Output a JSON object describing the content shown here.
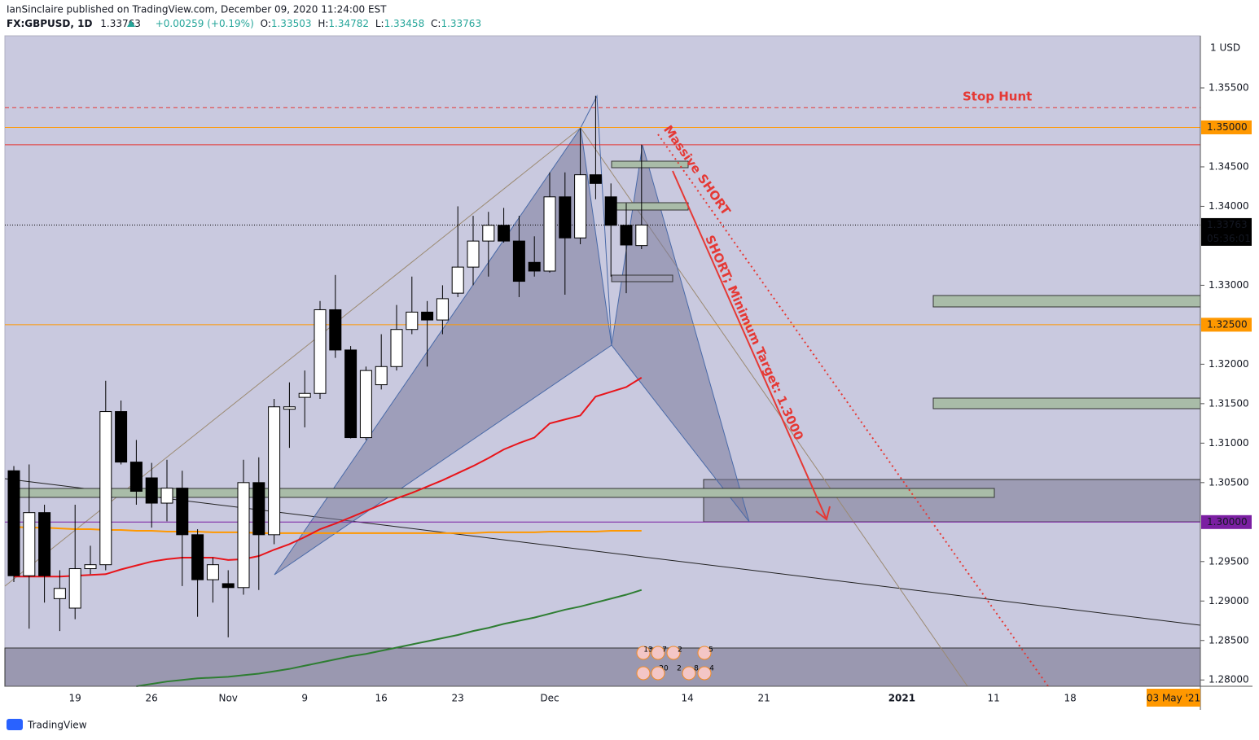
{
  "header": {
    "author_line": "IanSinclaire published on TradingView.com, December 09, 2020 11:24:00 EST",
    "symbol": "FX:GBPUSD, 1D",
    "price": "1.33763",
    "change": "+0.00259 (+0.19%)",
    "ohlc": [
      {
        "key": "O:",
        "value": "1.33503"
      },
      {
        "key": "H:",
        "value": "1.34782"
      },
      {
        "key": "L:",
        "value": "1.33458"
      },
      {
        "key": "C:",
        "value": "1.33763"
      }
    ]
  },
  "footer": {
    "brand": "TradingView"
  },
  "chart_data": {
    "type": "candlestick",
    "currency": "1 USD",
    "categories": [
      null,
      null,
      null,
      null,
      "19",
      null,
      null,
      null,
      null,
      "26",
      null,
      null,
      null,
      null,
      "Nov",
      null,
      null,
      null,
      null,
      "9",
      null,
      null,
      null,
      null,
      "16",
      null,
      null,
      null,
      null,
      "23",
      null,
      null,
      null,
      null,
      null,
      "Dec",
      null,
      null,
      null,
      null,
      null,
      null,
      null,
      null,
      "14",
      null,
      null,
      null,
      null,
      "21",
      null,
      null,
      null,
      null,
      null,
      null,
      null,
      null,
      "2021",
      null,
      null,
      null,
      null,
      null,
      "11",
      null,
      null,
      null,
      null,
      "18",
      null,
      null,
      null,
      null,
      null,
      null,
      null,
      null
    ],
    "open": [
      1.3065,
      1.2932,
      1.3012,
      1.2903,
      1.2891,
      1.2941,
      1.2946,
      1.314,
      1.3076,
      1.3056,
      1.3024,
      1.3043,
      1.2984,
      1.2927,
      1.2922,
      1.2917,
      1.305,
      1.2984,
      1.3143,
      1.3158,
      1.3163,
      1.3269,
      1.3218,
      1.3107,
      1.3174,
      1.3197,
      1.3244,
      1.3266,
      1.3256,
      1.329,
      1.3323,
      1.3356,
      1.3376,
      1.3356,
      1.3329,
      1.3318,
      1.3412,
      1.336,
      1.344,
      1.3412,
      1.3376,
      1.33503,
      null,
      null,
      null,
      null,
      null,
      null,
      null,
      null,
      null,
      null,
      null,
      null,
      null,
      null,
      null,
      null,
      null,
      null,
      null,
      null,
      null,
      null,
      null,
      null,
      null,
      null,
      null,
      null,
      null,
      null,
      null,
      null,
      null,
      null,
      null,
      null
    ],
    "high": [
      1.3071,
      1.3073,
      1.3022,
      1.2939,
      1.3022,
      1.297,
      1.3179,
      1.3154,
      1.3104,
      1.3075,
      1.3079,
      1.3065,
      1.2991,
      1.2955,
      1.2939,
      1.3079,
      1.3082,
      1.3156,
      1.3177,
      1.3192,
      1.328,
      1.3313,
      1.3223,
      1.3197,
      1.3238,
      1.3275,
      1.3311,
      1.328,
      1.33,
      1.34,
      1.3388,
      1.3393,
      1.3398,
      1.3388,
      1.3362,
      1.3443,
      1.3443,
      1.3499,
      1.354,
      1.3429,
      1.3404,
      1.34782,
      null,
      null,
      null,
      null,
      null,
      null,
      null,
      null,
      null,
      null,
      null,
      null,
      null,
      null,
      null,
      null,
      null,
      null,
      null,
      null,
      null,
      null,
      null,
      null,
      null,
      null,
      null,
      null,
      null,
      null,
      null,
      null,
      null,
      null,
      null,
      null
    ],
    "low": [
      1.2924,
      1.2865,
      1.2898,
      1.2862,
      1.2877,
      1.2934,
      1.2939,
      1.3073,
      1.3022,
      1.2993,
      1.3001,
      1.2919,
      1.288,
      1.2898,
      1.2854,
      1.2908,
      1.2914,
      1.2972,
      1.3094,
      1.312,
      1.3156,
      1.3208,
      1.3106,
      1.3104,
      1.3168,
      1.3192,
      1.3238,
      1.3197,
      1.3238,
      1.3285,
      1.33,
      1.3311,
      1.3354,
      1.3285,
      1.3311,
      1.3316,
      1.3288,
      1.3352,
      1.3409,
      1.3311,
      1.329,
      1.33458,
      null,
      null,
      null,
      null,
      null,
      null,
      null,
      null,
      null,
      null,
      null,
      null,
      null,
      null,
      null,
      null,
      null,
      null,
      null,
      null,
      null,
      null,
      null,
      null,
      null,
      null,
      null,
      null,
      null,
      null,
      null,
      null,
      null,
      null,
      null,
      null
    ],
    "close": [
      1.2932,
      1.3012,
      1.2932,
      1.2916,
      1.2941,
      1.2946,
      1.314,
      1.3076,
      1.3039,
      1.3024,
      1.3043,
      1.2984,
      1.2927,
      1.2946,
      1.2917,
      1.305,
      1.2984,
      1.3146,
      1.3146,
      1.3163,
      1.3269,
      1.3218,
      1.3107,
      1.3192,
      1.3197,
      1.3244,
      1.3266,
      1.3256,
      1.3283,
      1.3323,
      1.3356,
      1.3376,
      1.3356,
      1.3305,
      1.3318,
      1.3412,
      1.336,
      1.344,
      1.3429,
      1.3376,
      1.3351,
      1.33763,
      null,
      null,
      null,
      null,
      null,
      null,
      null,
      null,
      null,
      null,
      null,
      null,
      null,
      null,
      null,
      null,
      null,
      null,
      null,
      null,
      null,
      null,
      null,
      null,
      null,
      null,
      null,
      null,
      null,
      null,
      null,
      null,
      null,
      null,
      null,
      null
    ],
    "up_color": "#ffffff",
    "down_color": "#000000",
    "series": [
      {
        "color": "#ff9800",
        "values": [
          1.2994,
          1.2993,
          1.2993,
          1.2992,
          1.2991,
          1.2991,
          1.299,
          1.299,
          1.2989,
          1.2989,
          1.2988,
          1.2988,
          1.2988,
          1.2987,
          1.2987,
          1.2987,
          1.2986,
          1.2986,
          1.2986,
          1.2986,
          1.2986,
          1.2986,
          1.2986,
          1.2986,
          1.2986,
          1.2986,
          1.2986,
          1.2986,
          1.2986,
          1.2986,
          1.2986,
          1.2987,
          1.2987,
          1.2987,
          1.2987,
          1.2988,
          1.2988,
          1.2988,
          1.2988,
          1.2989,
          1.2989,
          1.2989,
          null,
          null,
          null,
          null,
          null,
          null,
          null,
          null,
          null,
          null,
          null,
          null,
          null,
          null,
          null,
          null,
          null,
          null,
          null,
          null,
          null,
          null,
          null,
          null,
          null,
          null,
          null,
          null,
          null,
          null,
          null,
          null,
          null,
          null,
          null,
          null
        ]
      },
      {
        "color": "#e8141a",
        "values": [
          1.2931,
          1.2931,
          1.2931,
          1.2931,
          1.2932,
          1.2933,
          1.2934,
          1.294,
          1.2945,
          1.295,
          1.2953,
          1.2955,
          1.2955,
          1.2955,
          1.2952,
          1.2953,
          1.2957,
          1.2965,
          1.2972,
          1.2981,
          1.2991,
          1.2998,
          1.3006,
          1.3014,
          1.3022,
          1.303,
          1.3037,
          1.3045,
          1.3053,
          1.3062,
          1.3071,
          1.3081,
          1.3092,
          1.31,
          1.3107,
          1.3125,
          1.313,
          1.3135,
          1.3159,
          1.3165,
          1.3171,
          1.3183,
          null,
          null,
          null,
          null,
          null,
          null,
          null,
          null,
          null,
          null,
          null,
          null,
          null,
          null,
          null,
          null,
          null,
          null,
          null,
          null,
          null,
          null,
          null,
          null,
          null,
          null,
          null,
          null,
          null,
          null,
          null,
          null,
          null,
          null,
          null,
          null
        ]
      },
      {
        "color": "#2e7d32",
        "values": [
          null,
          null,
          null,
          null,
          null,
          null,
          null,
          null,
          1.2792,
          1.2795,
          1.2798,
          1.28,
          1.2802,
          1.2803,
          1.2804,
          1.2806,
          1.2808,
          1.2811,
          1.2814,
          1.2818,
          1.2822,
          1.2826,
          1.283,
          1.2833,
          1.2837,
          1.2841,
          1.2845,
          1.2849,
          1.2853,
          1.2857,
          1.2862,
          1.2866,
          1.2871,
          1.2875,
          1.2879,
          1.2884,
          1.2889,
          1.2893,
          1.2898,
          1.2903,
          1.2908,
          1.2914,
          null,
          null,
          null,
          null,
          null,
          null,
          null,
          null,
          null,
          null,
          null,
          null,
          null,
          null,
          null,
          null,
          null,
          null,
          null,
          null,
          null,
          null,
          null,
          null,
          null,
          null,
          null,
          null,
          null,
          null,
          null,
          null,
          null,
          null,
          null,
          null
        ]
      }
    ],
    "ylim": [
      1.2792,
      1.3616
    ],
    "yticks": [
      {
        "value": 1.355,
        "label": "1.35500"
      },
      {
        "value": 1.345,
        "label": "1.34500"
      },
      {
        "value": 1.34,
        "label": "1.34000"
      },
      {
        "value": 1.33,
        "label": "1.33000"
      },
      {
        "value": 1.32,
        "label": "1.32000"
      },
      {
        "value": 1.315,
        "label": "1.31500"
      },
      {
        "value": 1.31,
        "label": "1.31000"
      },
      {
        "value": 1.305,
        "label": "1.30500"
      },
      {
        "value": 1.295,
        "label": "1.29500"
      },
      {
        "value": 1.29,
        "label": "1.29000"
      },
      {
        "value": 1.285,
        "label": "1.28500"
      },
      {
        "value": 1.28,
        "label": "1.28000"
      }
    ],
    "levels": [
      {
        "value": 1.3525,
        "color": "#e53935",
        "style": "dashed"
      },
      {
        "value": 1.35,
        "label": "1.35000",
        "color": "#ff9800",
        "text_color": "#000000",
        "style": "solid"
      },
      {
        "value": 1.3478,
        "color": "#e53935",
        "style": "solid"
      },
      {
        "value": 1.33763,
        "color": "#000000",
        "text_color": "#ffffff",
        "style": "dotted",
        "countdown": "05:36:01"
      },
      {
        "value": 1.325,
        "label": "1.32500",
        "color": "#ff9800",
        "text_color": "#000000",
        "style": "solid"
      },
      {
        "value": 1.3,
        "label": "1.30000",
        "color": "#7b1fa2",
        "text_color": "#ffffff",
        "style": "solid"
      }
    ],
    "annotations": [
      "Stop Hunt",
      "Massive SHORT",
      "SHORT; Minimum Target: 1.3000"
    ],
    "time_label": "03 May '21",
    "events": [
      13,
      7,
      2,
      5,
      20,
      2,
      8,
      4
    ]
  }
}
